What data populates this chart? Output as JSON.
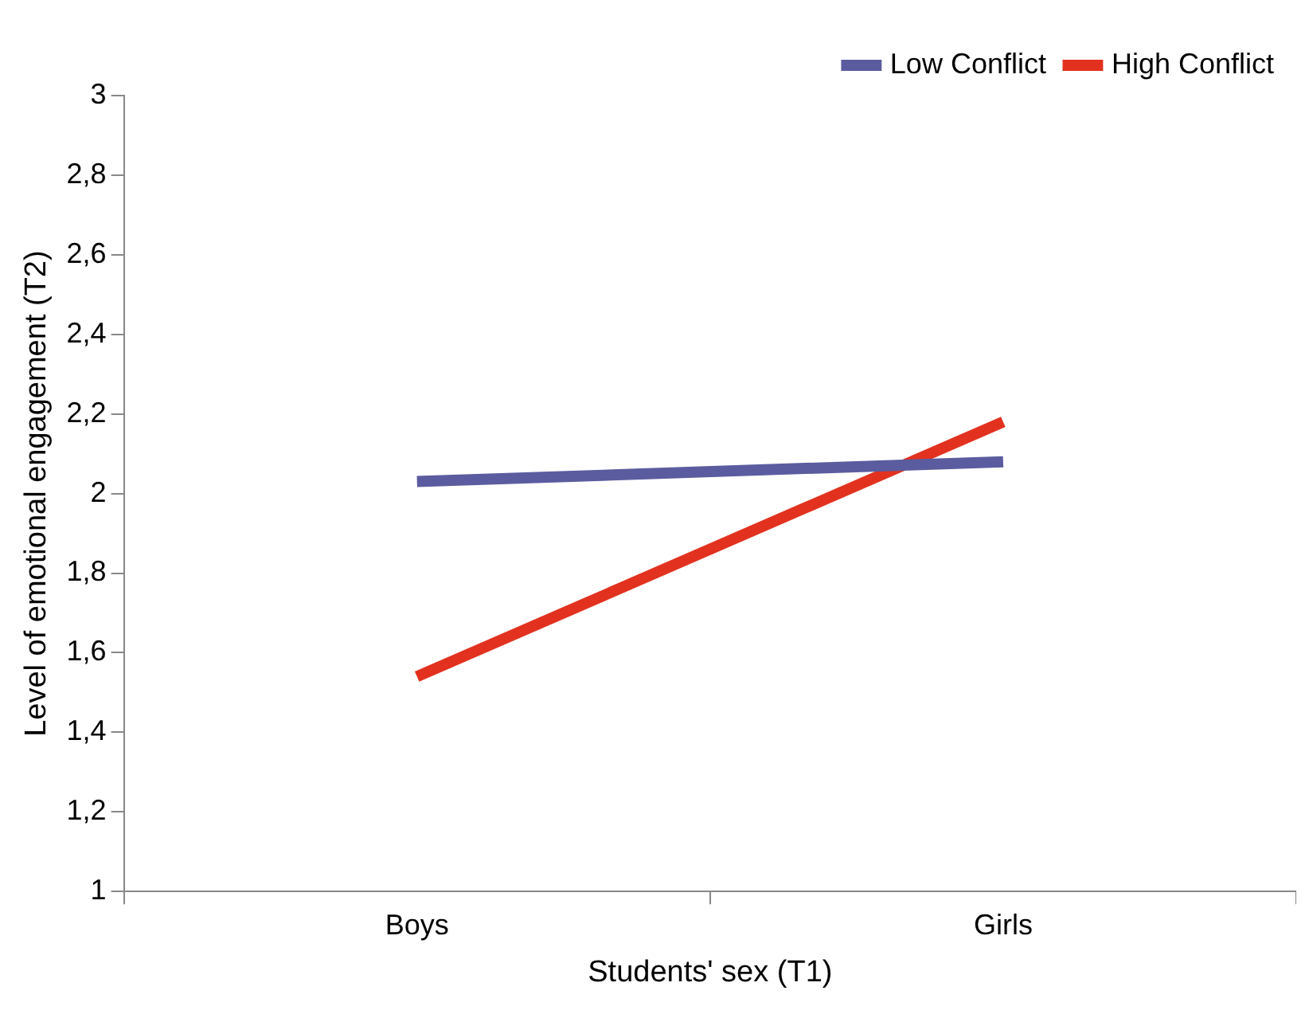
{
  "chart_data": {
    "type": "line",
    "xlabel": "Students' sex (T1)",
    "ylabel": "Level of emotional engagement (T2)",
    "categories": [
      "Boys",
      "Girls"
    ],
    "series": [
      {
        "name": "Low Conflict",
        "color": "#5b5c9f",
        "values": [
          2.03,
          2.08
        ]
      },
      {
        "name": "High Conflict",
        "color": "#e2321f",
        "values": [
          1.54,
          2.18
        ]
      }
    ],
    "ylim": [
      1,
      3
    ],
    "yticks": [
      1,
      {
        "value": 1.2,
        "label": "1,2"
      },
      {
        "value": 1.4,
        "label": "1,4"
      },
      {
        "value": 1.6,
        "label": "1,6"
      },
      {
        "value": 1.8,
        "label": "1,8"
      },
      2,
      {
        "value": 2.2,
        "label": "2,2"
      },
      {
        "value": 2.4,
        "label": "2,4"
      },
      {
        "value": 2.6,
        "label": "2,6"
      },
      {
        "value": 2.8,
        "label": "2,8"
      },
      3
    ],
    "grid": false,
    "legend": "top right",
    "marker": "none",
    "line_style": "solid"
  }
}
